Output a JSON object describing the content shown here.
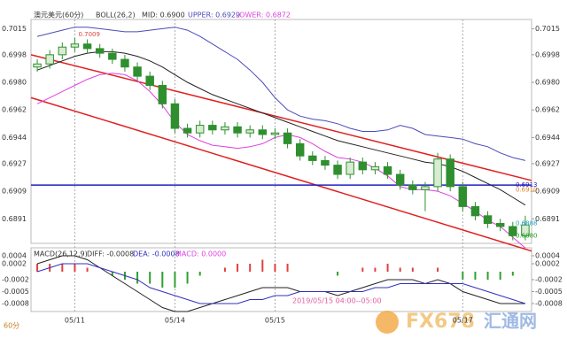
{
  "chart_data": {
    "type": "candlestick",
    "title": "澳元美元(60分)",
    "boll_header": [
      "BOLL(26,2)",
      "MID: 0.6900",
      "UPPER: 0.6929",
      "LOWER: 0.6872"
    ],
    "macd_header": [
      "MACD(26,12,9)",
      "DIFF: -0.0008",
      "DEA: -0.0008",
      "MACD: 0.0000"
    ],
    "period_label": "60分",
    "time_annotation": "2019/05/15 04:00--05:00",
    "watermark": [
      "FX678",
      "汇通网"
    ],
    "categories": [
      null,
      null,
      null,
      "05/11",
      null,
      null,
      null,
      null,
      null,
      null,
      null,
      "05/14",
      null,
      null,
      null,
      null,
      null,
      null,
      null,
      "05/15",
      null,
      null,
      null,
      null,
      null,
      null,
      null,
      null,
      null,
      null,
      null,
      null,
      null,
      null,
      "05/17",
      null,
      null,
      null,
      null,
      null
    ],
    "open": [
      0.699,
      0.6992,
      0.6998,
      0.7003,
      0.7005,
      0.7002,
      0.6999,
      0.6995,
      0.699,
      0.6984,
      0.6978,
      0.6966,
      0.695,
      0.6947,
      0.6952,
      0.6949,
      0.6951,
      0.6947,
      0.6949,
      0.6946,
      0.6947,
      0.694,
      0.6932,
      0.6929,
      0.6926,
      0.692,
      0.6928,
      0.6923,
      0.6925,
      0.692,
      0.6913,
      0.691,
      0.6912,
      0.693,
      0.6912,
      0.6899,
      0.6893,
      0.6888,
      0.6886,
      0.688
    ],
    "high": [
      0.6995,
      0.7001,
      0.7006,
      0.7009,
      0.7008,
      0.7005,
      0.7002,
      0.6998,
      0.6993,
      0.6987,
      0.6981,
      0.6969,
      0.6953,
      0.6955,
      0.6955,
      0.6954,
      0.6954,
      0.6952,
      0.6952,
      0.695,
      0.695,
      0.6943,
      0.6935,
      0.6932,
      0.6929,
      0.6931,
      0.6931,
      0.6928,
      0.6928,
      0.6923,
      0.6916,
      0.6915,
      0.6934,
      0.6933,
      0.6915,
      0.6902,
      0.6896,
      0.6891,
      0.6889,
      0.6893
    ],
    "low": [
      0.6987,
      0.6989,
      0.6995,
      0.7,
      0.6999,
      0.6996,
      0.6992,
      0.6987,
      0.6981,
      0.6975,
      0.6963,
      0.6947,
      0.6944,
      0.6944,
      0.6946,
      0.6946,
      0.6944,
      0.6944,
      0.6943,
      0.6943,
      0.6937,
      0.6929,
      0.6926,
      0.6923,
      0.6917,
      0.6917,
      0.692,
      0.692,
      0.6917,
      0.691,
      0.6907,
      0.6896,
      0.6909,
      0.6909,
      0.6896,
      0.689,
      0.6885,
      0.6883,
      0.6877,
      0.6877
    ],
    "close": [
      0.6992,
      0.6998,
      0.7003,
      0.7005,
      0.7002,
      0.6999,
      0.6995,
      0.699,
      0.6984,
      0.6978,
      0.6966,
      0.695,
      0.6947,
      0.6952,
      0.6949,
      0.6951,
      0.6947,
      0.6949,
      0.6946,
      0.6947,
      0.694,
      0.6932,
      0.6929,
      0.6926,
      0.692,
      0.6928,
      0.6923,
      0.6925,
      0.692,
      0.6913,
      0.691,
      0.6912,
      0.693,
      0.6912,
      0.6899,
      0.6893,
      0.6888,
      0.6886,
      0.688,
      0.6887
    ],
    "up_color": "#d7ecd2",
    "down_color": "#2f8f2f",
    "overlays": [
      {
        "color": "#222222",
        "values": [
          0.6988,
          0.6991,
          0.6994,
          0.6997,
          0.6999,
          0.7,
          0.7,
          0.6999,
          0.6997,
          0.6994,
          0.699,
          0.6985,
          0.698,
          0.6976,
          0.6972,
          0.6969,
          0.6966,
          0.6963,
          0.696,
          0.6957,
          0.6954,
          0.6951,
          0.6948,
          0.6945,
          0.6942,
          0.694,
          0.6938,
          0.6936,
          0.6934,
          0.6932,
          0.693,
          0.6928,
          0.6927,
          0.6925,
          0.6922,
          0.6918,
          0.6914,
          0.691,
          0.6905,
          0.69
        ]
      },
      {
        "color": "#4a4ab8",
        "values": [
          0.701,
          0.7012,
          0.7014,
          0.7016,
          0.7016,
          0.7015,
          0.7014,
          0.7013,
          0.7013,
          0.7014,
          0.7015,
          0.7016,
          0.7014,
          0.701,
          0.7005,
          0.7,
          0.6995,
          0.6988,
          0.698,
          0.697,
          0.6962,
          0.6958,
          0.6956,
          0.6955,
          0.6953,
          0.695,
          0.6948,
          0.6948,
          0.6949,
          0.6952,
          0.695,
          0.6946,
          0.6945,
          0.6944,
          0.6943,
          0.694,
          0.6938,
          0.6934,
          0.6931,
          0.6929
        ]
      },
      {
        "color": "#e040e0",
        "values": [
          0.6966,
          0.697,
          0.6974,
          0.6978,
          0.6982,
          0.6985,
          0.6986,
          0.6985,
          0.6981,
          0.6974,
          0.6965,
          0.6954,
          0.6946,
          0.6942,
          0.6939,
          0.6938,
          0.6937,
          0.6938,
          0.694,
          0.6944,
          0.6946,
          0.6944,
          0.694,
          0.6935,
          0.6931,
          0.693,
          0.6928,
          0.6924,
          0.6919,
          0.6912,
          0.691,
          0.691,
          0.6909,
          0.6906,
          0.6901,
          0.6896,
          0.689,
          0.6886,
          0.6879,
          0.6872
        ]
      }
    ],
    "trend_lines": [
      {
        "color": "#e02020",
        "values": [
          0.6998,
          0.6916
        ]
      },
      {
        "color": "#e02020",
        "values": [
          0.697,
          0.687
        ]
      },
      {
        "color": "#2020c0",
        "values": [
          0.6913,
          0.6913
        ]
      }
    ],
    "price_labels": [
      {
        "value": 0.7009,
        "color": "#e04040"
      },
      {
        "value": 0.6913,
        "color": "#2020c0"
      },
      {
        "value": 0.691,
        "label": "0.6910",
        "color": "#e08020"
      },
      {
        "value": 0.6888,
        "color": "#20a0c0"
      },
      {
        "value": 0.688,
        "label": "0.6880",
        "color": "#20a020"
      }
    ],
    "ylim": [
      0.6875,
      0.7021
    ],
    "yticks": [
      0.7015,
      0.6998,
      {
        "value": 0.698,
        "label": "0.6980"
      },
      0.6962,
      0.6944,
      0.6927,
      0.6909,
      0.6891
    ],
    "macd": {
      "diff": [
        0.0002,
        0.0003,
        0.0004,
        0.0004,
        0.0003,
        0.0001,
        -0.0001,
        -0.0003,
        -0.0005,
        -0.0007,
        -0.0009,
        -0.001,
        -0.001,
        -0.0009,
        -0.0008,
        -0.0007,
        -0.0006,
        -0.0005,
        -0.0004,
        -0.0004,
        -0.0004,
        -0.0005,
        -0.0005,
        -0.0005,
        -0.0006,
        -0.0005,
        -0.0004,
        -0.0003,
        -0.0002,
        -0.0002,
        -0.0002,
        -0.0003,
        -0.0002,
        -0.0003,
        -0.0005,
        -0.0006,
        -0.0007,
        -0.0008,
        -0.0008,
        -0.0008
      ],
      "dea": [
        0.0,
        0.0001,
        0.0002,
        0.0002,
        0.0002,
        0.0001,
        0.0,
        -0.0001,
        -0.0002,
        -0.0004,
        -0.0005,
        -0.0006,
        -0.0007,
        -0.0008,
        -0.0008,
        -0.0008,
        -0.0008,
        -0.0007,
        -0.0007,
        -0.0006,
        -0.0006,
        -0.0005,
        -0.0005,
        -0.0005,
        -0.0005,
        -0.0005,
        -0.0005,
        -0.0004,
        -0.0004,
        -0.0003,
        -0.0003,
        -0.0003,
        -0.0003,
        -0.0003,
        -0.0003,
        -0.0004,
        -0.0005,
        -0.0006,
        -0.0007,
        -0.0008
      ],
      "hist": [
        0.0002,
        0.0002,
        0.0002,
        0.0002,
        0.0001,
        0,
        -0.0001,
        -0.0002,
        -0.0003,
        -0.0003,
        -0.0004,
        -0.0004,
        -0.0003,
        -0.0001,
        0,
        0.0001,
        0.0002,
        0.0002,
        0.0003,
        0.0002,
        0.0002,
        0,
        0,
        0,
        -0.0001,
        0,
        0.0001,
        0.0001,
        0.0002,
        0.0001,
        0.0001,
        0,
        0.0001,
        0,
        -0.0002,
        -0.0002,
        -0.0002,
        -0.0002,
        -0.0001,
        0
      ],
      "diff_color": "#222222",
      "dea_color": "#3030c0",
      "pos_color": "#e04040",
      "neg_color": "#30a030",
      "ylim": [
        -0.001,
        0.0006
      ],
      "yticks": [
        0.0004,
        0.0002,
        -0.0002,
        -0.0005,
        -0.0008
      ]
    }
  }
}
